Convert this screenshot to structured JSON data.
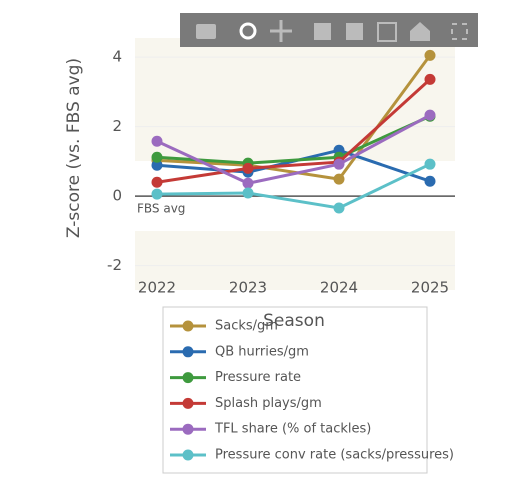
{
  "chart_data": {
    "type": "line",
    "x_label": "Season",
    "y_label": "Z-score (vs. FBS avg)",
    "annotation": "FBS avg",
    "categories": [
      "2022",
      "2023",
      "2024",
      "2025"
    ],
    "ylim": [
      -2.7,
      4.55
    ],
    "yticks": [
      -2,
      0,
      2,
      4
    ],
    "series": [
      {
        "name": "Sacks/gm",
        "color": "#b5923c",
        "values": [
          1.03,
          0.89,
          0.49,
          4.05
        ]
      },
      {
        "name": "QB hurries/gm",
        "color": "#2a6bb0",
        "values": [
          0.89,
          0.69,
          1.32,
          0.43
        ]
      },
      {
        "name": "Pressure rate",
        "color": "#3e9a3e",
        "values": [
          1.12,
          0.95,
          1.12,
          2.3
        ]
      },
      {
        "name": "Splash plays/gm",
        "color": "#c43a36",
        "values": [
          0.4,
          0.8,
          0.98,
          3.36
        ]
      },
      {
        "name": "TFL share (% of tackles)",
        "color": "#9b6bbf",
        "values": [
          1.58,
          0.37,
          0.92,
          2.33
        ]
      },
      {
        "name": "Pressure conv rate (sacks/pressures)",
        "color": "#5cc0c8",
        "values": [
          0.06,
          0.09,
          -0.34,
          0.92
        ]
      }
    ]
  }
}
